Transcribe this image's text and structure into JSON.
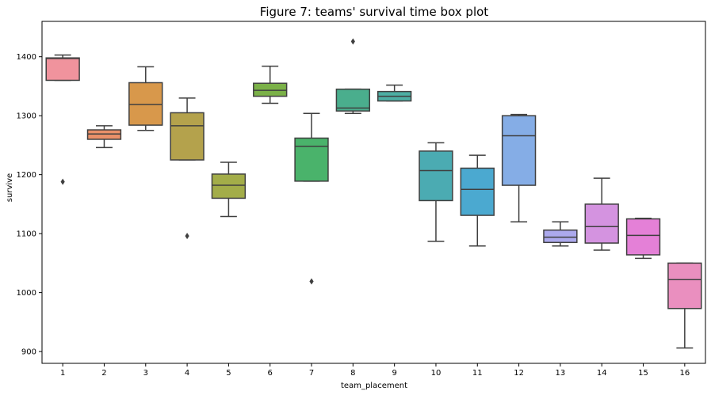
{
  "chart_data": {
    "type": "box",
    "title": "Figure 7: teams' survival time box plot",
    "xlabel": "team_placement",
    "ylabel": "survive",
    "ylim": [
      880,
      1460
    ],
    "y_ticks": [
      900,
      1000,
      1100,
      1200,
      1300,
      1400
    ],
    "grid": false,
    "legend": "none",
    "categories": [
      "1",
      "2",
      "3",
      "4",
      "5",
      "6",
      "7",
      "8",
      "9",
      "10",
      "11",
      "12",
      "13",
      "14",
      "15",
      "16"
    ],
    "boxes": [
      {
        "category": "1",
        "whisker_low": 1360,
        "q1": 1360,
        "median": 1397,
        "q3": 1398,
        "whisker_high": 1403,
        "outliers": [
          1188
        ],
        "color": "#f0939d"
      },
      {
        "category": "2",
        "whisker_low": 1246,
        "q1": 1260,
        "median": 1269,
        "q3": 1276,
        "whisker_high": 1283,
        "outliers": [],
        "color": "#ea9069"
      },
      {
        "category": "3",
        "whisker_low": 1275,
        "q1": 1284,
        "median": 1319,
        "q3": 1356,
        "whisker_high": 1383,
        "outliers": [],
        "color": "#d8984b"
      },
      {
        "category": "4",
        "whisker_low": 1225,
        "q1": 1225,
        "median": 1283,
        "q3": 1305,
        "whisker_high": 1330,
        "outliers": [
          1096
        ],
        "color": "#b4a24c"
      },
      {
        "category": "5",
        "whisker_low": 1129,
        "q1": 1160,
        "median": 1182,
        "q3": 1201,
        "whisker_high": 1221,
        "outliers": [],
        "color": "#a3ad49"
      },
      {
        "category": "6",
        "whisker_low": 1321,
        "q1": 1333,
        "median": 1343,
        "q3": 1355,
        "whisker_high": 1384,
        "outliers": [],
        "color": "#7bb148"
      },
      {
        "category": "7",
        "whisker_low": 1189,
        "q1": 1189,
        "median": 1248,
        "q3": 1262,
        "whisker_high": 1304,
        "outliers": [
          1019
        ],
        "color": "#4ab36b"
      },
      {
        "category": "8",
        "whisker_low": 1304,
        "q1": 1308,
        "median": 1313,
        "q3": 1345,
        "whisker_high": 1345,
        "outliers": [
          1426
        ],
        "color": "#4aae8d"
      },
      {
        "category": "9",
        "whisker_low": 1325,
        "q1": 1325,
        "median": 1333,
        "q3": 1341,
        "whisker_high": 1352,
        "outliers": [],
        "color": "#4caea3"
      },
      {
        "category": "10",
        "whisker_low": 1087,
        "q1": 1156,
        "median": 1207,
        "q3": 1240,
        "whisker_high": 1254,
        "outliers": [],
        "color": "#4babb2"
      },
      {
        "category": "11",
        "whisker_low": 1079,
        "q1": 1131,
        "median": 1175,
        "q3": 1211,
        "whisker_high": 1233,
        "outliers": [],
        "color": "#4ba9d0"
      },
      {
        "category": "12",
        "whisker_low": 1120,
        "q1": 1182,
        "median": 1266,
        "q3": 1300,
        "whisker_high": 1302,
        "outliers": [],
        "color": "#85ade6"
      },
      {
        "category": "13",
        "whisker_low": 1079,
        "q1": 1085,
        "median": 1094,
        "q3": 1106,
        "whisker_high": 1120,
        "outliers": [],
        "color": "#aca9ed"
      },
      {
        "category": "14",
        "whisker_low": 1072,
        "q1": 1084,
        "median": 1112,
        "q3": 1150,
        "whisker_high": 1194,
        "outliers": [],
        "color": "#d493e0"
      },
      {
        "category": "15",
        "whisker_low": 1058,
        "q1": 1064,
        "median": 1097,
        "q3": 1125,
        "whisker_high": 1126,
        "outliers": [],
        "color": "#e480d7"
      },
      {
        "category": "16",
        "whisker_low": 906,
        "q1": 973,
        "median": 1022,
        "q3": 1050,
        "whisker_high": 1050,
        "outliers": [],
        "color": "#ea8fbf"
      }
    ]
  }
}
